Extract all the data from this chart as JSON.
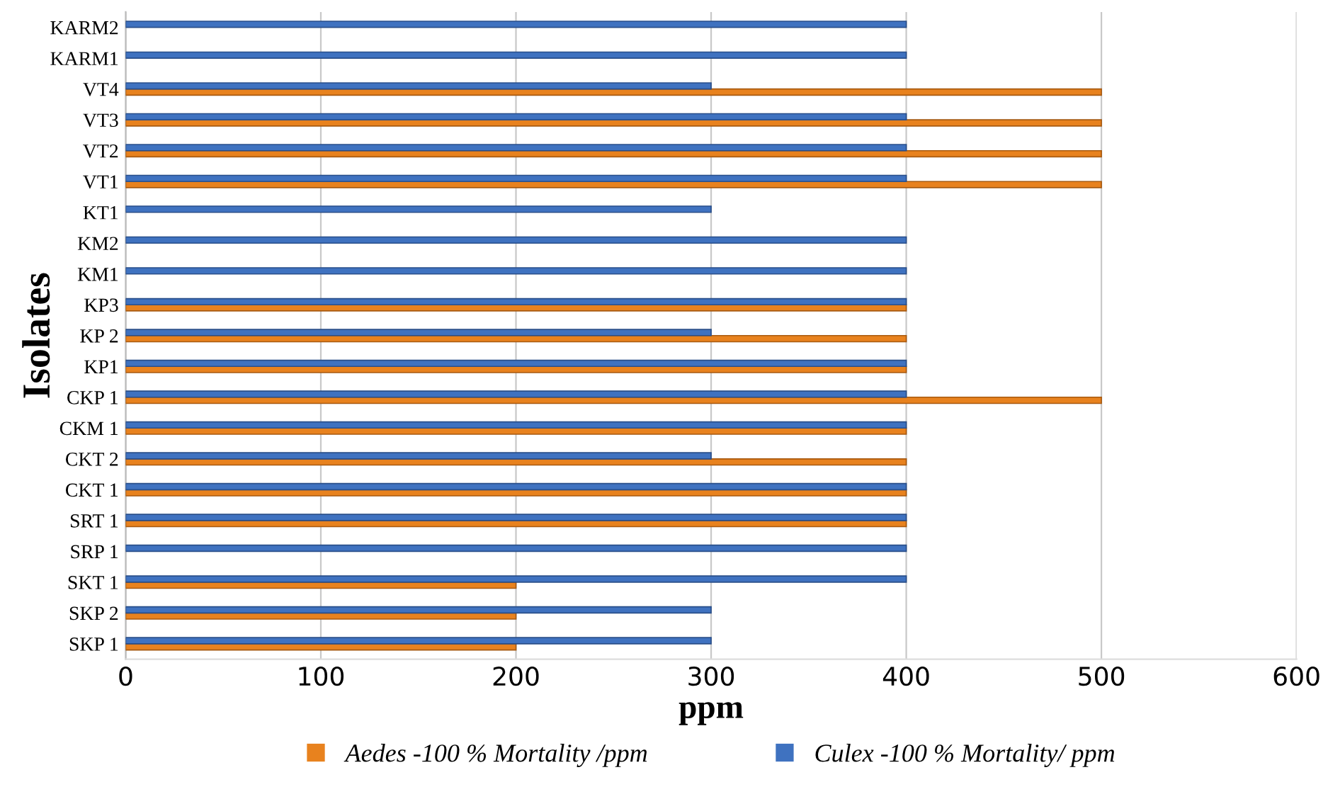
{
  "chart_data": {
    "type": "bar",
    "orientation": "horizontal",
    "xlabel": "ppm",
    "ylabel": "Isolates",
    "categories": [
      "KARM2",
      "KARM1",
      "VT4",
      "VT3",
      "VT2",
      "VT1",
      "KT1",
      "KM2",
      "KM1",
      "KP3",
      "KP 2",
      "KP1",
      "CKP 1",
      "CKM 1",
      "CKT 2",
      "CKT 1",
      "SRT 1",
      "SRP 1",
      "SKT 1",
      "SKP 2",
      "SKP 1"
    ],
    "series": [
      {
        "name": "Aedes -100 % Mortality /ppm",
        "color": "#e8821e",
        "values": [
          null,
          null,
          500,
          500,
          500,
          500,
          null,
          null,
          null,
          400,
          400,
          400,
          500,
          400,
          400,
          400,
          400,
          null,
          200,
          200,
          200
        ]
      },
      {
        "name": "Culex -100 % Mortality/ ppm",
        "color": "#3f72c0",
        "values": [
          400,
          400,
          300,
          400,
          400,
          400,
          300,
          400,
          400,
          400,
          300,
          400,
          400,
          400,
          300,
          400,
          400,
          400,
          400,
          300,
          300
        ]
      }
    ],
    "xlim": [
      0,
      600
    ],
    "xticks": [
      0,
      100,
      200,
      300,
      400,
      500,
      600
    ],
    "grid": "x",
    "legend": "bottom"
  }
}
